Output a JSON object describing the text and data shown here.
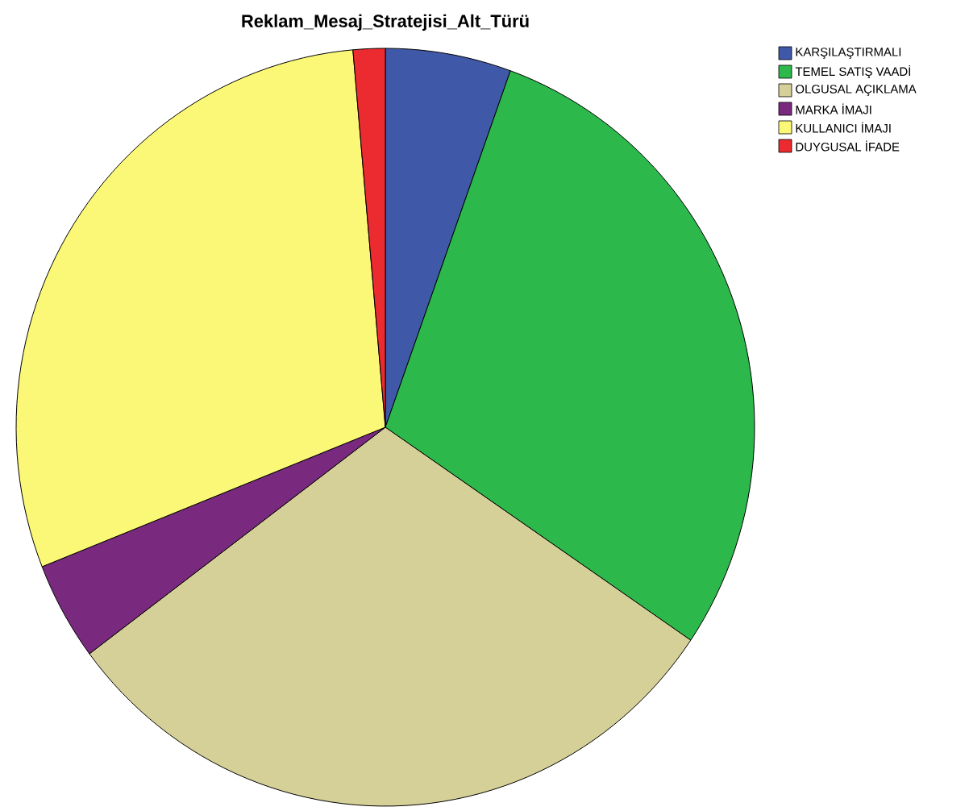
{
  "chart_data": {
    "type": "pie",
    "title": "Reklam_Mesaj_Stratejisi_Alt_Türü",
    "categories": [
      "KARŞILAŞTIRMALI",
      "TEMEL SATIŞ VAADİ",
      "OLGUSAL AÇIKLAMA",
      "MARKA İMAJI",
      "KULLANICI İMAJI",
      "DUYGUSAL İFADE"
    ],
    "values": [
      5.5,
      29.0,
      30.3,
      4.2,
      29.6,
      1.4
    ],
    "colors": [
      "#3f58a8",
      "#2db84b",
      "#d5cf98",
      "#7a2a7e",
      "#fbf878",
      "#eb2b2f"
    ],
    "legend": "top right"
  }
}
